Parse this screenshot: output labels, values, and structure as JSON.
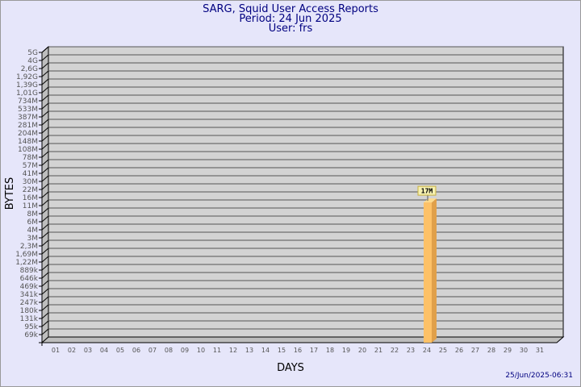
{
  "chart_data": {
    "type": "bar",
    "title": "SARG, Squid User Access Reports",
    "subtitle_period": "Period: 24 Jun 2025",
    "subtitle_user": "User: frs",
    "xlabel": "DAYS",
    "ylabel": "BYTES",
    "y_scale": "log",
    "y_tick_labels": [
      "69k",
      "95k",
      "131k",
      "180k",
      "247k",
      "341k",
      "469k",
      "646k",
      "889k",
      "1,22M",
      "1,69M",
      "2,3M",
      "3M",
      "4M",
      "6M",
      "8M",
      "11M",
      "16M",
      "22M",
      "30M",
      "41M",
      "57M",
      "78M",
      "108M",
      "148M",
      "204M",
      "281M",
      "387M",
      "533M",
      "734M",
      "1,01G",
      "1,39G",
      "1,92G",
      "2,6G",
      "4G",
      "5G"
    ],
    "y_tick_values": [
      69000,
      95000,
      131000,
      180000,
      247000,
      341000,
      469000,
      646000,
      889000,
      1220000,
      1690000,
      2300000,
      3000000,
      4000000,
      6000000,
      8000000,
      11000000,
      16000000,
      22000000,
      30000000,
      41000000,
      57000000,
      78000000,
      108000000,
      148000000,
      204000000,
      281000000,
      387000000,
      533000000,
      734000000,
      1010000000,
      1390000000,
      1920000000,
      2600000000,
      4000000000,
      5000000000
    ],
    "categories": [
      "01",
      "02",
      "03",
      "04",
      "05",
      "06",
      "07",
      "08",
      "09",
      "10",
      "11",
      "12",
      "13",
      "14",
      "15",
      "16",
      "17",
      "18",
      "19",
      "20",
      "21",
      "22",
      "23",
      "24",
      "25",
      "26",
      "27",
      "28",
      "29",
      "30",
      "31"
    ],
    "bars": [
      {
        "day": "24",
        "value": 17000000,
        "label": "17M"
      }
    ],
    "grid": true,
    "colors": {
      "bar_front": "#fdc167",
      "bar_side": "#e0a04a",
      "bar_top": "#ffdb8c",
      "wall": "#d3d3d3",
      "background": "#e6e6fa",
      "title": "#000080"
    }
  },
  "footer": {
    "timestamp": "25/Jun/2025-06:31"
  }
}
